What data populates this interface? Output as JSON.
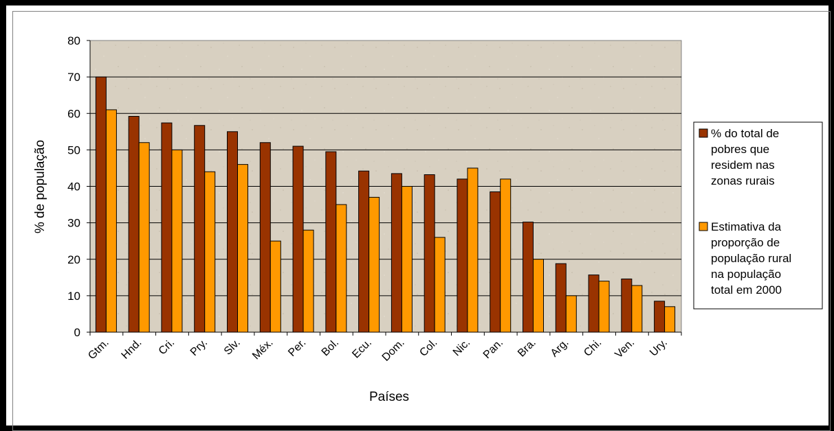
{
  "chart_data": {
    "type": "bar",
    "title": "",
    "xlabel": "Países",
    "ylabel": "% de população",
    "ylim": [
      0,
      80
    ],
    "yticks": [
      "0",
      "10",
      "20",
      "30",
      "40",
      "50",
      "60",
      "70",
      "80"
    ],
    "categories": [
      "Gtm.",
      "Hnd.",
      "Cri.",
      "Pry.",
      "Slv.",
      "Méx.",
      "Per.",
      "Bol.",
      "Ecu.",
      "Dom.",
      "Col.",
      "Nic.",
      "Pan.",
      "Bra.",
      "Arg.",
      "Chi.",
      "Ven.",
      "Ury."
    ],
    "series": [
      {
        "name": "% do total de pobres que residem nas zonas rurais",
        "legend_lines": [
          "% do total de",
          "pobres que",
          "residem nas",
          "zonas rurais"
        ],
        "color": "#993300",
        "values": [
          70,
          59.2,
          57.4,
          56.7,
          55,
          52,
          51,
          49.5,
          44.2,
          43.5,
          43.2,
          42,
          38.5,
          30.2,
          18.8,
          15.7,
          14.6,
          8.5
        ]
      },
      {
        "name": "Estimativa da proporção de população rural na população total em 2000",
        "legend_lines": [
          "Estimativa da",
          "proporção de",
          "população rural",
          "na população",
          "total em 2000"
        ],
        "color": "#ff9900",
        "values": [
          61,
          52,
          50,
          44,
          46,
          25,
          28,
          35,
          37,
          40,
          26,
          45,
          42,
          20,
          10,
          14,
          12.8,
          7
        ]
      }
    ],
    "grid": true,
    "legend_position": "right",
    "plot_background": "#d8d0c0"
  }
}
